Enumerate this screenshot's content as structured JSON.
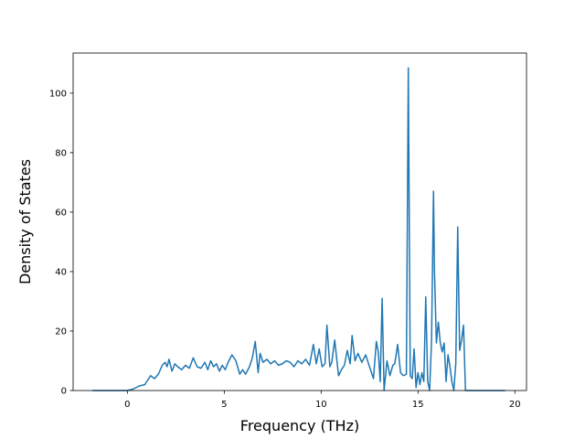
{
  "chart_data": {
    "type": "line",
    "title": "",
    "xlabel": "Frequency (THz)",
    "ylabel": "Density of States",
    "xlim": [
      -2.8,
      20.6
    ],
    "ylim": [
      0,
      113.5
    ],
    "xticks": [
      0,
      5,
      10,
      15,
      20
    ],
    "yticks": [
      0,
      20,
      40,
      60,
      80,
      100
    ],
    "grid": false,
    "legend": "none",
    "series": [
      {
        "color": "#1f77b4",
        "x": [
          -1.8,
          -0.5,
          0.0,
          0.3,
          0.6,
          0.9,
          1.2,
          1.4,
          1.6,
          1.8,
          1.95,
          2.05,
          2.15,
          2.3,
          2.45,
          2.6,
          2.8,
          3.0,
          3.2,
          3.4,
          3.6,
          3.8,
          4.0,
          4.15,
          4.3,
          4.45,
          4.6,
          4.75,
          4.9,
          5.05,
          5.2,
          5.4,
          5.6,
          5.8,
          5.95,
          6.1,
          6.3,
          6.45,
          6.6,
          6.75,
          6.85,
          7.0,
          7.2,
          7.4,
          7.6,
          7.8,
          8.0,
          8.2,
          8.4,
          8.6,
          8.8,
          9.0,
          9.2,
          9.4,
          9.6,
          9.75,
          9.9,
          10.05,
          10.2,
          10.3,
          10.45,
          10.55,
          10.7,
          10.9,
          11.05,
          11.2,
          11.35,
          11.5,
          11.6,
          11.75,
          11.9,
          12.1,
          12.3,
          12.5,
          12.7,
          12.85,
          12.95,
          13.05,
          13.15,
          13.25,
          13.4,
          13.55,
          13.7,
          13.8,
          13.95,
          14.1,
          14.25,
          14.4,
          14.5,
          14.6,
          14.7,
          14.8,
          14.9,
          15.0,
          15.1,
          15.2,
          15.3,
          15.4,
          15.5,
          15.6,
          15.7,
          15.8,
          15.85,
          15.95,
          16.05,
          16.15,
          16.25,
          16.35,
          16.45,
          16.55,
          16.65,
          16.75,
          16.85,
          16.95,
          17.05,
          17.15,
          17.25,
          17.35,
          17.45,
          17.55,
          17.65,
          17.75,
          17.85,
          18.0,
          19.5
        ],
        "y": [
          0,
          0,
          0,
          0.5,
          1.5,
          2.0,
          5.0,
          4.0,
          5.5,
          8.5,
          9.5,
          8.0,
          10.5,
          6.5,
          9.0,
          8.0,
          7.0,
          8.5,
          7.5,
          11.0,
          8.0,
          7.5,
          9.5,
          7.0,
          10.0,
          8.0,
          9.0,
          6.5,
          8.5,
          7.0,
          9.5,
          12.0,
          10.0,
          5.5,
          7.0,
          5.5,
          8.0,
          11.0,
          16.5,
          6.0,
          12.5,
          9.5,
          10.5,
          9.0,
          10.0,
          8.5,
          9.0,
          10.0,
          9.5,
          8.0,
          10.0,
          9.0,
          10.5,
          8.5,
          15.5,
          9.0,
          14.0,
          8.0,
          9.0,
          22.0,
          8.0,
          9.5,
          17.0,
          5.0,
          7.0,
          8.5,
          13.5,
          9.0,
          18.5,
          10.0,
          12.5,
          9.5,
          12.0,
          8.0,
          4.0,
          16.5,
          13.0,
          3.0,
          31.0,
          0.0,
          10.0,
          5.0,
          8.5,
          9.0,
          15.5,
          6.0,
          5.0,
          5.5,
          108.5,
          5.0,
          4.0,
          14.0,
          1.0,
          6.0,
          2.0,
          6.0,
          3.0,
          31.5,
          3.0,
          0.0,
          17.0,
          67.0,
          40.0,
          16.0,
          23.0,
          16.0,
          13.0,
          16.0,
          3.0,
          12.0,
          8.0,
          3.0,
          0.0,
          9.0,
          55.0,
          13.5,
          17.0,
          22.0,
          0.0,
          0.0,
          0.0,
          0.0,
          0.0,
          0.0,
          0.0
        ]
      }
    ]
  }
}
